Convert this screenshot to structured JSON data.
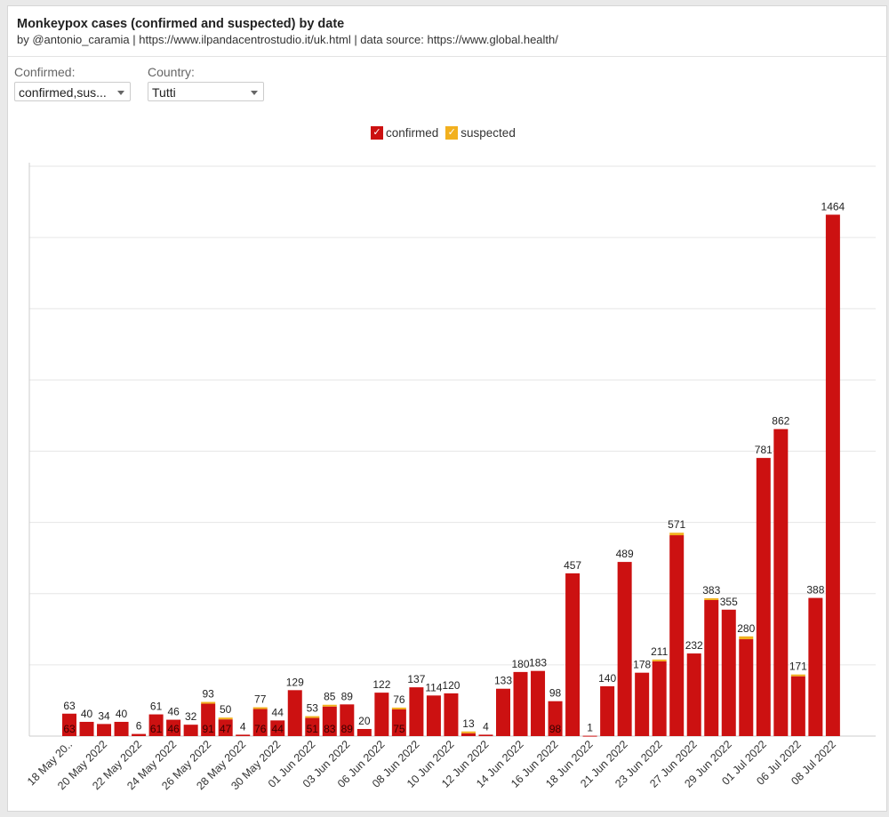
{
  "header": {
    "title": "Monkeypox cases (confirmed and suspected) by date",
    "subtitle": "by @antonio_caramia | https://www.ilpandacentrostudio.it/uk.html | data source: https://www.global.health/"
  },
  "filters": {
    "confirmed_label": "Confirmed:",
    "confirmed_value": "confirmed,sus...",
    "country_label": "Country:",
    "country_value": "Tutti"
  },
  "legend": {
    "confirmed": "confirmed",
    "suspected": "suspected",
    "check": "✓"
  },
  "colors": {
    "confirmed": "#cc1111",
    "suspected": "#f2b01e"
  },
  "chart_data": {
    "type": "bar",
    "stacked": true,
    "title": "Monkeypox cases (confirmed and suspected) by date",
    "ylim": [
      0,
      1600
    ],
    "grid": true,
    "legend_position": "top-center",
    "x_tick_labels": [
      "18 May 20..",
      "20 May 2022",
      "22 May 2022",
      "24 May 2022",
      "26 May 2022",
      "28 May 2022",
      "30 May 2022",
      "01 Jun 2022",
      "03 Jun 2022",
      "06 Jun 2022",
      "08 Jun 2022",
      "10 Jun 2022",
      "12 Jun 2022",
      "14 Jun 2022",
      "16 Jun 2022",
      "18 Jun 2022",
      "21 Jun 2022",
      "23 Jun 2022",
      "27 Jun 2022",
      "29 Jun 2022",
      "01 Jul 2022",
      "06 Jul 2022",
      "08 Jul 2022"
    ],
    "totals": [
      63,
      40,
      34,
      40,
      6,
      61,
      46,
      32,
      93,
      50,
      4,
      77,
      44,
      129,
      53,
      85,
      89,
      20,
      122,
      76,
      137,
      114,
      120,
      13,
      4,
      133,
      180,
      183,
      98,
      457,
      1,
      140,
      489,
      178,
      211,
      571,
      232,
      383,
      355,
      280,
      781,
      862,
      171,
      388,
      1464
    ],
    "series": [
      {
        "name": "confirmed",
        "values": [
          63,
          40,
          34,
          40,
          6,
          61,
          46,
          32,
          91,
          47,
          4,
          76,
          44,
          129,
          51,
          83,
          89,
          20,
          122,
          75,
          137,
          114,
          120,
          8,
          4,
          133,
          180,
          183,
          98,
          457,
          1,
          140,
          489,
          178,
          210,
          564,
          232,
          382,
          355,
          272,
          781,
          862,
          168,
          388,
          1464
        ]
      },
      {
        "name": "suspected",
        "values": [
          0,
          0,
          0,
          0,
          0,
          0,
          0,
          0,
          2,
          3,
          0,
          1,
          0,
          0,
          2,
          2,
          0,
          0,
          0,
          1,
          0,
          0,
          0,
          5,
          0,
          0,
          0,
          0,
          0,
          0,
          0,
          0,
          0,
          0,
          1,
          7,
          0,
          1,
          0,
          8,
          0,
          0,
          3,
          0,
          0
        ]
      }
    ],
    "inner_labels": [
      63,
      null,
      null,
      null,
      null,
      61,
      46,
      null,
      91,
      47,
      null,
      76,
      44,
      null,
      51,
      83,
      89,
      null,
      null,
      75,
      null,
      null,
      null,
      null,
      null,
      null,
      null,
      null,
      98,
      null,
      null,
      null,
      null,
      null,
      null,
      null,
      null,
      null,
      null,
      null,
      null,
      null,
      null,
      null,
      null
    ]
  }
}
